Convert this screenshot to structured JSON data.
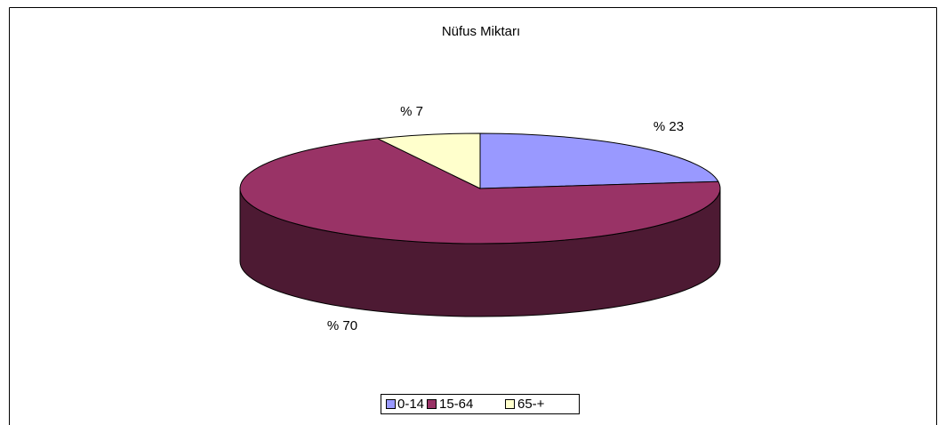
{
  "chart_data": {
    "type": "pie3d",
    "title": "Nüfus Miktarı",
    "categories": [
      "0-14",
      "15-64",
      "65-+"
    ],
    "values": [
      23,
      70,
      7
    ],
    "value_labels": [
      "% 23",
      "% 70",
      "% 7"
    ],
    "colors": [
      "#9999ff",
      "#993366",
      "#ffffcc"
    ],
    "legend": "bottom"
  }
}
